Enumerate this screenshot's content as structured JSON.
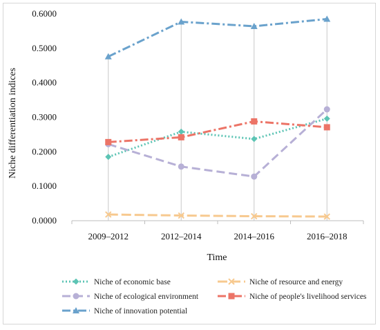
{
  "chart_data": {
    "type": "line",
    "categories": [
      "2009–2012",
      "2012–2014",
      "2014–2016",
      "2016–2018"
    ],
    "xlabel": "Time",
    "ylabel": "Niche differentiation indices",
    "ylim": [
      0,
      0.6
    ],
    "yticks": [
      "0.0000",
      "0.1000",
      "0.2000",
      "0.3000",
      "0.4000",
      "0.5000",
      "0.6000"
    ],
    "grid": false,
    "legend_position": "bottom",
    "series": [
      {
        "name": "Niche of economic base",
        "values": [
          0.185,
          0.258,
          0.237,
          0.296
        ],
        "color": "#5cc4b4",
        "dash": "2,3",
        "marker": "diamond"
      },
      {
        "name": "Niche of resource and energy",
        "values": [
          0.018,
          0.015,
          0.013,
          0.012
        ],
        "color": "#f7c98f",
        "dash": "14,5",
        "marker": "x"
      },
      {
        "name": "Niche of ecological environment",
        "values": [
          0.222,
          0.157,
          0.128,
          0.323
        ],
        "color": "#b7b0d6",
        "dash": "12,6",
        "marker": "circle"
      },
      {
        "name": "Niche of people's livelihood services",
        "values": [
          0.228,
          0.242,
          0.288,
          0.271
        ],
        "color": "#ec7467",
        "dash": "12,4,3,4",
        "marker": "square"
      },
      {
        "name": "Niche of  innovation potential",
        "values": [
          0.476,
          0.577,
          0.564,
          0.585
        ],
        "color": "#6aa2cc",
        "dash": "12,4,3,4",
        "marker": "triangle"
      }
    ]
  }
}
